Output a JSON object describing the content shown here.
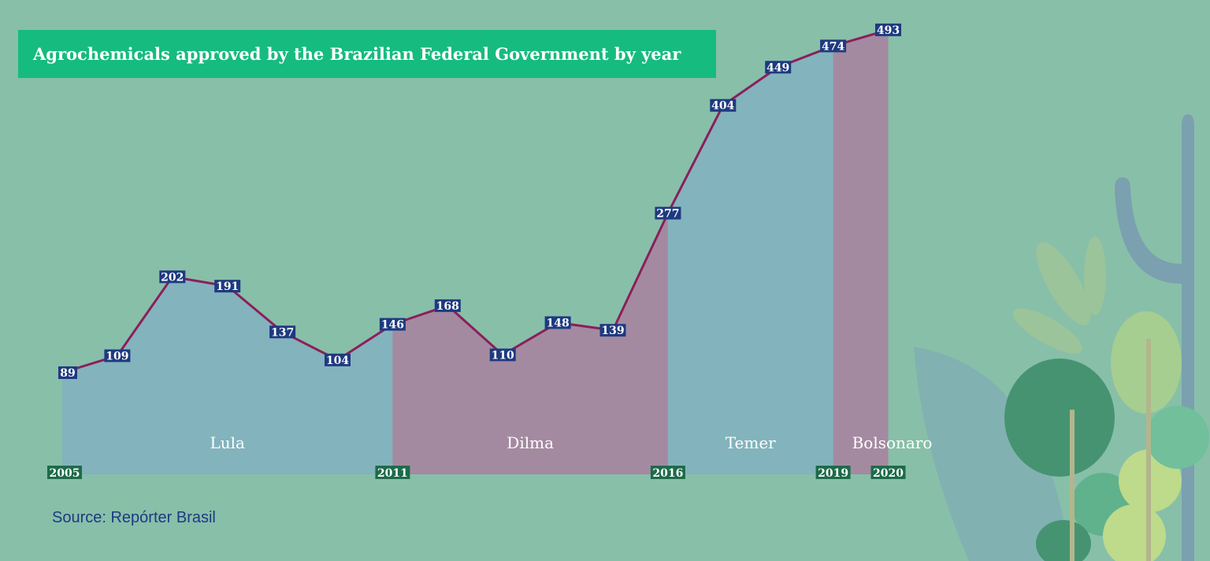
{
  "chart_data": {
    "type": "area",
    "title": "Agrochemicals approved by the Brazilian Federal Government by year",
    "source": "Source: Repórter Brasil",
    "x": [
      2005,
      2006,
      2007,
      2008,
      2009,
      2010,
      2011,
      2012,
      2013,
      2014,
      2015,
      2016,
      2017,
      2018,
      2019,
      2020
    ],
    "values": [
      89,
      109,
      202,
      191,
      137,
      104,
      146,
      168,
      110,
      148,
      139,
      277,
      404,
      449,
      474,
      493
    ],
    "x_tick_labels": [
      "2005",
      "2011",
      "2016",
      "2019",
      "2020"
    ],
    "periods": [
      {
        "name": "Lula",
        "start": 2005,
        "end": 2011,
        "color": "#83b3bd"
      },
      {
        "name": "Dilma",
        "start": 2011,
        "end": 2016,
        "color": "#a48aa0"
      },
      {
        "name": "Temer",
        "start": 2016,
        "end": 2019,
        "color": "#83b3bd"
      },
      {
        "name": "Bolsonaro",
        "start": 2019,
        "end": 2020,
        "color": "#a48aa0"
      }
    ],
    "line_color": "#8b1f5b",
    "label_bg": "#1e3a80",
    "year_label_bg": "#1d6b4a"
  }
}
